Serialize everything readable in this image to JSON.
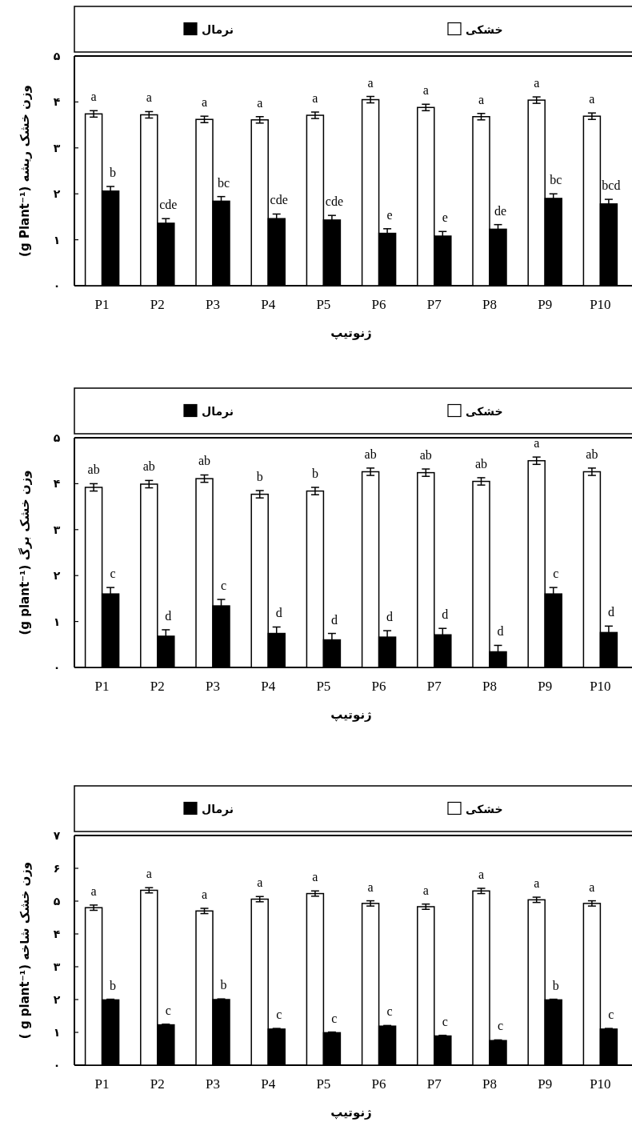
{
  "chart_data": [
    {
      "type": "bar",
      "categories": [
        "P1",
        "P2",
        "P3",
        "P4",
        "P5",
        "P6",
        "P7",
        "P8",
        "P9",
        "P10"
      ],
      "xlabel": "ژنوتیپ",
      "ylabel": "وزن خشک ریشه (g Plant⁻¹)",
      "ylim": [
        0,
        5
      ],
      "yticks": [
        {
          "value": 0,
          "label": "۰"
        },
        {
          "value": 1,
          "label": "۱"
        },
        {
          "value": 2,
          "label": "۲"
        },
        {
          "value": 3,
          "label": "۳"
        },
        {
          "value": 4,
          "label": "۴"
        },
        {
          "value": 5,
          "label": "۵"
        }
      ],
      "legend": "top",
      "series": [
        {
          "name": "خشکی",
          "color": "#ffffff",
          "values": [
            3.74,
            3.72,
            3.62,
            3.61,
            3.71,
            4.05,
            3.88,
            3.68,
            4.04,
            3.69
          ],
          "errors": [
            0.07,
            0.07,
            0.07,
            0.07,
            0.07,
            0.07,
            0.07,
            0.07,
            0.07,
            0.07
          ],
          "value_labels": [
            "a",
            "a",
            "a",
            "a",
            "a",
            "a",
            "a",
            "a",
            "a",
            "a"
          ]
        },
        {
          "name": "نرمال",
          "color": "#000000",
          "values": [
            2.06,
            1.36,
            1.84,
            1.46,
            1.43,
            1.14,
            1.08,
            1.23,
            1.9,
            1.78
          ],
          "errors": [
            0.1,
            0.1,
            0.1,
            0.1,
            0.1,
            0.1,
            0.1,
            0.1,
            0.1,
            0.1
          ],
          "value_labels": [
            "b",
            "cde",
            "bc",
            "cde",
            "cde",
            "e",
            "e",
            "de",
            "bc",
            "bcd"
          ]
        }
      ]
    },
    {
      "type": "bar",
      "categories": [
        "P1",
        "P2",
        "P3",
        "P4",
        "P5",
        "P6",
        "P7",
        "P8",
        "P9",
        "P10"
      ],
      "xlabel": "ژنوتیپ",
      "ylabel": "وزن خشک برگ (g plant⁻¹)",
      "ylim": [
        0,
        5
      ],
      "yticks": [
        {
          "value": 0,
          "label": "۰"
        },
        {
          "value": 1,
          "label": "۱"
        },
        {
          "value": 2,
          "label": "۲"
        },
        {
          "value": 3,
          "label": "۳"
        },
        {
          "value": 4,
          "label": "۴"
        },
        {
          "value": 5,
          "label": "۵"
        }
      ],
      "legend": "top",
      "series": [
        {
          "name": "خشکی",
          "color": "#ffffff",
          "values": [
            3.92,
            3.99,
            4.11,
            3.77,
            3.84,
            4.26,
            4.24,
            4.05,
            4.5,
            4.26
          ],
          "errors": [
            0.08,
            0.08,
            0.08,
            0.08,
            0.08,
            0.08,
            0.08,
            0.08,
            0.08,
            0.08
          ],
          "value_labels": [
            "ab",
            "ab",
            "ab",
            "b",
            "b",
            "ab",
            "ab",
            "ab",
            "a",
            "ab"
          ]
        },
        {
          "name": "نرمال",
          "color": "#000000",
          "values": [
            1.6,
            0.68,
            1.34,
            0.74,
            0.6,
            0.66,
            0.71,
            0.34,
            1.6,
            0.76
          ],
          "errors": [
            0.14,
            0.14,
            0.14,
            0.14,
            0.14,
            0.14,
            0.14,
            0.14,
            0.14,
            0.14
          ],
          "value_labels": [
            "c",
            "d",
            "c",
            "d",
            "d",
            "d",
            "d",
            "d",
            "c",
            "d"
          ]
        }
      ]
    },
    {
      "type": "bar",
      "categories": [
        "P1",
        "P2",
        "P3",
        "P4",
        "P5",
        "P6",
        "P7",
        "P8",
        "P9",
        "P10"
      ],
      "xlabel": "ژنوتیپ",
      "ylabel": "وزن خشک شاخه (g plant⁻¹ )",
      "ylim": [
        0,
        7
      ],
      "yticks": [
        {
          "value": 0,
          "label": "۰"
        },
        {
          "value": 1,
          "label": "۱"
        },
        {
          "value": 2,
          "label": "۲"
        },
        {
          "value": 3,
          "label": "۳"
        },
        {
          "value": 4,
          "label": "۴"
        },
        {
          "value": 5,
          "label": "۵"
        },
        {
          "value": 6,
          "label": "۶"
        },
        {
          "value": 7,
          "label": "۷"
        }
      ],
      "legend": "top",
      "series": [
        {
          "name": "خشکی",
          "color": "#ffffff",
          "values": [
            4.8,
            5.33,
            4.7,
            5.06,
            5.23,
            4.93,
            4.83,
            5.31,
            5.04,
            4.93
          ],
          "errors": [
            0.08,
            0.08,
            0.08,
            0.08,
            0.08,
            0.08,
            0.08,
            0.08,
            0.08,
            0.08
          ],
          "value_labels": [
            "a",
            "a",
            "a",
            "a",
            "a",
            "a",
            "a",
            "a",
            "a",
            "a"
          ]
        },
        {
          "name": "نرمال",
          "color": "#000000",
          "values": [
            1.99,
            1.23,
            2.0,
            1.1,
            0.99,
            1.19,
            0.89,
            0.75,
            1.99,
            1.1
          ],
          "errors": [
            0.02,
            0.02,
            0.02,
            0.02,
            0.02,
            0.02,
            0.02,
            0.02,
            0.02,
            0.02
          ],
          "value_labels": [
            "b",
            "c",
            "b",
            "c",
            "c",
            "c",
            "c",
            "c",
            "b",
            "c"
          ]
        }
      ]
    }
  ]
}
